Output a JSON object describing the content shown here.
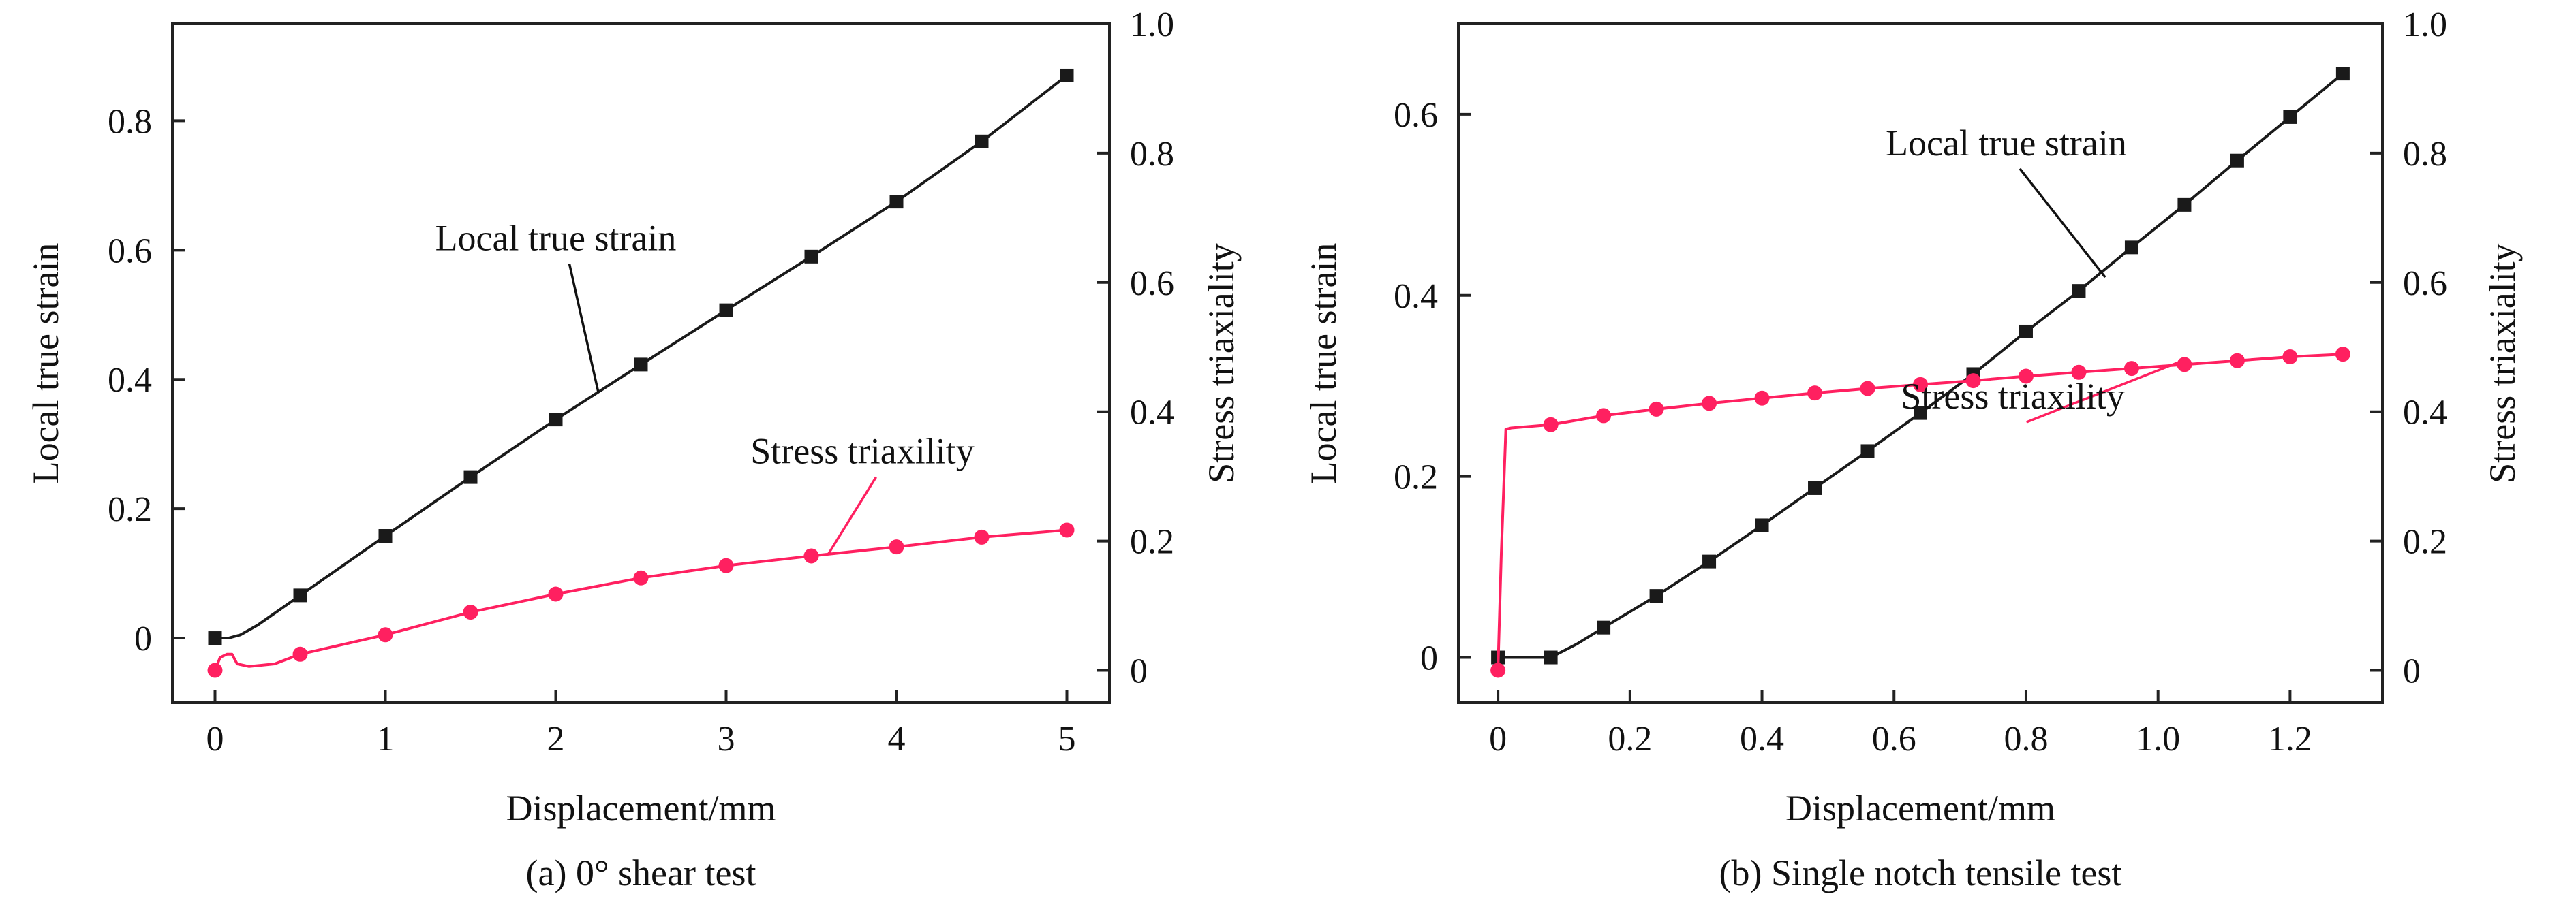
{
  "chart_data": [
    {
      "id": "a",
      "type": "line",
      "caption": "(a) 0° shear test",
      "xlabel": "Displacement/mm",
      "ylabel_left": "Local true strain",
      "ylabel_right": "Stress triaxiality",
      "xlim": [
        -0.25,
        5.25
      ],
      "ylim_left": [
        -0.1,
        0.95
      ],
      "ylim_right": [
        -0.05,
        1.0
      ],
      "xticks": [
        "0",
        "1",
        "2",
        "3",
        "4",
        "5"
      ],
      "yticks_left": [
        "0",
        "0.2",
        "0.4",
        "0.6",
        "0.8"
      ],
      "yticks_right": [
        "0",
        "0.2",
        "0.4",
        "0.6",
        "0.8",
        "1.0"
      ],
      "grid": false,
      "series": [
        {
          "name": "Local true strain",
          "axis": "left",
          "color": "#1a1a1a",
          "marker": "square",
          "points": [
            [
              0,
              0.0
            ],
            [
              0.5,
              0.066
            ],
            [
              1.0,
              0.158
            ],
            [
              1.5,
              0.249
            ],
            [
              2.0,
              0.338
            ],
            [
              2.5,
              0.423
            ],
            [
              3.0,
              0.507
            ],
            [
              3.5,
              0.59
            ],
            [
              4.0,
              0.675
            ],
            [
              4.5,
              0.768
            ],
            [
              5.0,
              0.87
            ]
          ],
          "curve": [
            [
              0,
              0.0
            ],
            [
              0.08,
              0.0
            ],
            [
              0.15,
              0.005
            ],
            [
              0.25,
              0.02
            ],
            [
              0.5,
              0.066
            ],
            [
              1.0,
              0.158
            ],
            [
              1.5,
              0.249
            ],
            [
              2.0,
              0.338
            ],
            [
              2.5,
              0.423
            ],
            [
              3.0,
              0.507
            ],
            [
              3.5,
              0.59
            ],
            [
              4.0,
              0.675
            ],
            [
              4.5,
              0.768
            ],
            [
              5.0,
              0.87
            ]
          ]
        },
        {
          "name": "Stress triaxility",
          "axis": "right",
          "color": "#ff2060",
          "marker": "circle",
          "points": [
            [
              0,
              0.0
            ],
            [
              0.5,
              0.025
            ],
            [
              1.0,
              0.055
            ],
            [
              1.5,
              0.09
            ],
            [
              2.0,
              0.118
            ],
            [
              2.5,
              0.143
            ],
            [
              3.0,
              0.162
            ],
            [
              3.5,
              0.177
            ],
            [
              4.0,
              0.191
            ],
            [
              4.5,
              0.206
            ],
            [
              5.0,
              0.217
            ]
          ],
          "curve": [
            [
              0,
              0.0
            ],
            [
              0.03,
              0.02
            ],
            [
              0.07,
              0.025
            ],
            [
              0.1,
              0.025
            ],
            [
              0.13,
              0.01
            ],
            [
              0.2,
              0.006
            ],
            [
              0.35,
              0.01
            ],
            [
              0.5,
              0.025
            ],
            [
              1.0,
              0.055
            ],
            [
              1.5,
              0.09
            ],
            [
              2.0,
              0.118
            ],
            [
              2.5,
              0.143
            ],
            [
              3.0,
              0.162
            ],
            [
              3.5,
              0.177
            ],
            [
              4.0,
              0.191
            ],
            [
              4.5,
              0.206
            ],
            [
              5.0,
              0.217
            ]
          ]
        }
      ],
      "annotations": [
        {
          "text": "Local true strain",
          "series": 0,
          "target": [
            2.25,
            0.38
          ],
          "label_at": [
            2.0,
            0.6
          ]
        },
        {
          "text": "Stress triaxility",
          "series": 1,
          "target": [
            3.6,
            0.18
          ],
          "label_at": [
            3.8,
            0.27
          ]
        }
      ]
    },
    {
      "id": "b",
      "type": "line",
      "caption": "(b) Single notch tensile test",
      "xlabel": "Displacement/mm",
      "ylabel_left": "Local true strain",
      "ylabel_right": "Stress triaxiality",
      "xlim": [
        -0.06,
        1.34
      ],
      "ylim_left": [
        -0.05,
        0.7
      ],
      "ylim_right": [
        -0.05,
        1.0
      ],
      "xticks": [
        "0",
        "0.2",
        "0.4",
        "0.6",
        "0.8",
        "1.0",
        "1.2"
      ],
      "yticks_left": [
        "0",
        "0.2",
        "0.4",
        "0.6"
      ],
      "yticks_right": [
        "0",
        "0.2",
        "0.4",
        "0.6",
        "0.8",
        "1.0"
      ],
      "grid": false,
      "series": [
        {
          "name": "Local true strain",
          "axis": "left",
          "color": "#1a1a1a",
          "marker": "square",
          "points": [
            [
              0,
              0.0
            ],
            [
              0.08,
              0.0
            ],
            [
              0.16,
              0.033
            ],
            [
              0.24,
              0.068
            ],
            [
              0.32,
              0.106
            ],
            [
              0.4,
              0.146
            ],
            [
              0.48,
              0.187
            ],
            [
              0.56,
              0.228
            ],
            [
              0.64,
              0.27
            ],
            [
              0.72,
              0.313
            ],
            [
              0.8,
              0.36
            ],
            [
              0.88,
              0.405
            ],
            [
              0.96,
              0.453
            ],
            [
              1.04,
              0.5
            ],
            [
              1.12,
              0.549
            ],
            [
              1.2,
              0.597
            ],
            [
              1.28,
              0.645
            ]
          ],
          "curve": [
            [
              0,
              0.0
            ],
            [
              0.08,
              0.0
            ],
            [
              0.12,
              0.015
            ],
            [
              0.16,
              0.033
            ],
            [
              0.24,
              0.068
            ],
            [
              0.32,
              0.106
            ],
            [
              0.4,
              0.146
            ],
            [
              0.48,
              0.187
            ],
            [
              0.56,
              0.228
            ],
            [
              0.64,
              0.27
            ],
            [
              0.72,
              0.313
            ],
            [
              0.8,
              0.36
            ],
            [
              0.88,
              0.405
            ],
            [
              0.96,
              0.453
            ],
            [
              1.04,
              0.5
            ],
            [
              1.12,
              0.549
            ],
            [
              1.2,
              0.597
            ],
            [
              1.28,
              0.645
            ]
          ]
        },
        {
          "name": "Stress triaxility",
          "axis": "right",
          "color": "#ff2060",
          "marker": "circle",
          "points": [
            [
              0,
              0.0
            ],
            [
              0.08,
              0.38
            ],
            [
              0.16,
              0.394
            ],
            [
              0.24,
              0.404
            ],
            [
              0.32,
              0.413
            ],
            [
              0.4,
              0.421
            ],
            [
              0.48,
              0.429
            ],
            [
              0.56,
              0.436
            ],
            [
              0.64,
              0.442
            ],
            [
              0.72,
              0.448
            ],
            [
              0.8,
              0.455
            ],
            [
              0.88,
              0.461
            ],
            [
              0.96,
              0.467
            ],
            [
              1.04,
              0.473
            ],
            [
              1.12,
              0.479
            ],
            [
              1.2,
              0.485
            ],
            [
              1.28,
              0.489
            ]
          ],
          "curve": [
            [
              0,
              0.0
            ],
            [
              0.005,
              0.18
            ],
            [
              0.012,
              0.373
            ],
            [
              0.02,
              0.375
            ],
            [
              0.08,
              0.38
            ],
            [
              0.16,
              0.394
            ],
            [
              0.24,
              0.404
            ],
            [
              0.32,
              0.413
            ],
            [
              0.4,
              0.421
            ],
            [
              0.48,
              0.429
            ],
            [
              0.56,
              0.436
            ],
            [
              0.64,
              0.442
            ],
            [
              0.72,
              0.448
            ],
            [
              0.8,
              0.455
            ],
            [
              0.88,
              0.461
            ],
            [
              0.96,
              0.467
            ],
            [
              1.04,
              0.473
            ],
            [
              1.12,
              0.479
            ],
            [
              1.2,
              0.485
            ],
            [
              1.28,
              0.489
            ]
          ]
        }
      ],
      "annotations": [
        {
          "text": "Local true strain",
          "series": 0,
          "target": [
            0.92,
            0.42
          ],
          "label_at": [
            0.77,
            0.555
          ]
        },
        {
          "text": "Stress triaxility",
          "series": 1,
          "target": [
            1.03,
            0.476
          ],
          "label_at": [
            0.78,
            0.275
          ]
        }
      ]
    }
  ]
}
